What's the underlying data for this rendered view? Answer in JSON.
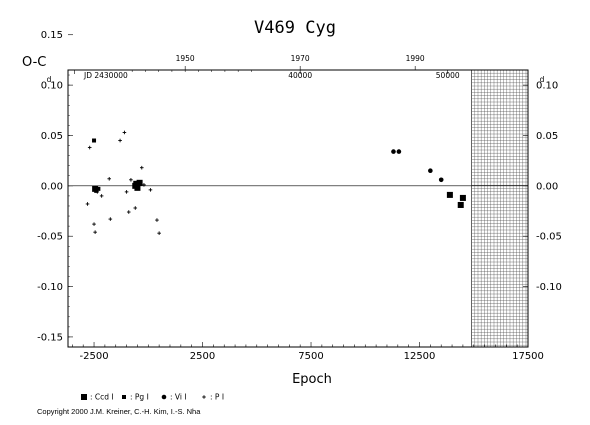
{
  "chart_data": {
    "type": "scatter",
    "title": "V469  Cyg",
    "ylabel": "O-C",
    "xlabel": "Epoch",
    "xlim": [
      -3700,
      17500
    ],
    "ylim": [
      -0.16,
      0.115
    ],
    "x_ticks": [
      "-2500",
      "2500",
      "7500",
      "12500",
      "17500"
    ],
    "y_ticks_left": [
      "0.15",
      "0.10",
      "0.05",
      "0.00",
      "-0.05",
      "-0.10",
      "-0.15"
    ],
    "y_ticks_right": [
      "0.10",
      "0.05",
      "0.00",
      "-0.05",
      "-0.10"
    ],
    "top_year_ticks": [
      "1950",
      "1970",
      "1990"
    ],
    "top_year_positions_epoch": [
      1700,
      7000,
      12300
    ],
    "jd_ticks": [
      "JD  2430000",
      "40000",
      "50000"
    ],
    "jd_positions_epoch": [
      -3400,
      7000,
      13800
    ],
    "day_superscript": "d",
    "future_region_start_epoch": 14900,
    "series": [
      {
        "name": ": Ccd I",
        "marker": "square",
        "points": [
          [
            -2450,
            -0.003
          ],
          [
            -600,
            0.0
          ],
          [
            -500,
            -0.002
          ],
          [
            -400,
            0.003
          ],
          [
            13900,
            -0.009
          ],
          [
            14400,
            -0.019
          ],
          [
            14500,
            -0.012
          ]
        ]
      },
      {
        "name": ": Pg I",
        "marker": "small-square",
        "points": [
          [
            -2500,
            0.045
          ],
          [
            -2400,
            -0.005
          ],
          [
            -2300,
            -0.003
          ],
          [
            -600,
            0.003
          ]
        ]
      },
      {
        "name": ": Vi I",
        "marker": "dot",
        "points": [
          [
            11300,
            0.034
          ],
          [
            11550,
            0.034
          ],
          [
            13000,
            0.015
          ],
          [
            13500,
            0.006
          ]
        ]
      },
      {
        "name": ": P I",
        "marker": "plus",
        "points": [
          [
            -2800,
            -0.018
          ],
          [
            -2700,
            0.038
          ],
          [
            -2500,
            -0.038
          ],
          [
            -2450,
            -0.046
          ],
          [
            -2350,
            -0.006
          ],
          [
            -2150,
            -0.01
          ],
          [
            -1800,
            0.007
          ],
          [
            -1750,
            -0.033
          ],
          [
            -1300,
            0.045
          ],
          [
            -1100,
            0.053
          ],
          [
            -1000,
            -0.006
          ],
          [
            -900,
            -0.026
          ],
          [
            -800,
            0.006
          ],
          [
            -600,
            -0.022
          ],
          [
            -300,
            0.018
          ],
          [
            -200,
            0.001
          ],
          [
            100,
            -0.004
          ],
          [
            400,
            -0.034
          ],
          [
            500,
            -0.047
          ]
        ]
      }
    ]
  },
  "copyright": "Copyright 2000 J.M. Kreiner, C.-H. Kim, I.-S. Nha"
}
